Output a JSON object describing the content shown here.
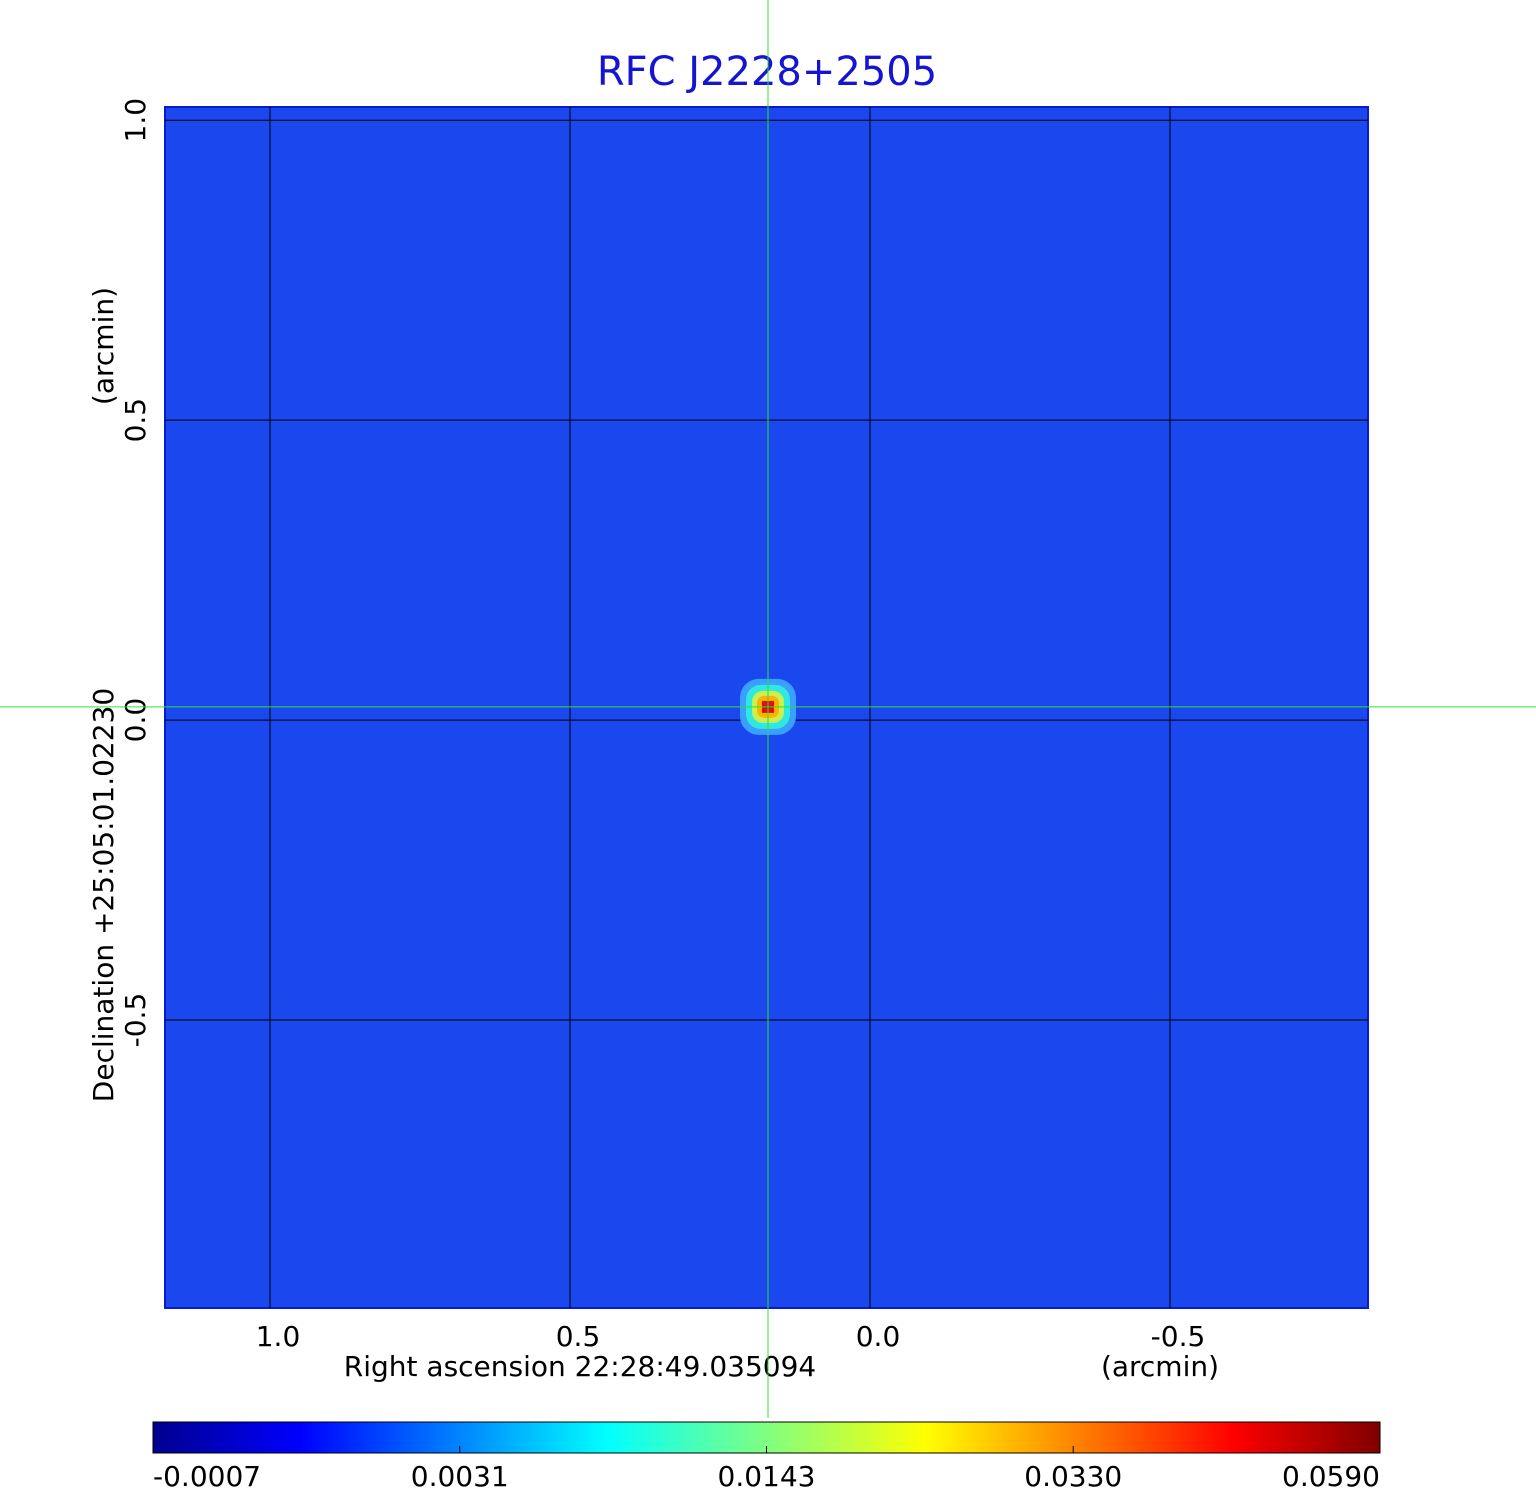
{
  "chart_data": {
    "type": "image",
    "title": "RFC J2228+2505",
    "xlabel": "Right ascension  22:28:49.035094",
    "xunit": "(arcmin)",
    "ylabel": "Declination  +25:05:01.02230",
    "yunit": "(arcmin)",
    "xlim": [
      1.175,
      -0.83
    ],
    "ylim": [
      -0.98,
      1.022
    ],
    "xticks": [
      {
        "value": 1,
        "label": "1.0"
      },
      {
        "value": 0.5,
        "label": "0.5"
      },
      {
        "value": 0,
        "label": "0.0"
      },
      {
        "value": -0.5,
        "label": "-0.5"
      }
    ],
    "yticks": [
      {
        "value": 1,
        "label": "1.0"
      },
      {
        "value": 0.5,
        "label": "0.5"
      },
      {
        "value": 0,
        "label": "0.0"
      },
      {
        "value": -0.5,
        "label": "-0.5"
      }
    ],
    "grid": true,
    "colormap": "jet",
    "colorbar_ticks": [
      -0.0007,
      0.0031,
      0.0143,
      {
        "value": 0.033,
        "label": "0.0330"
      },
      {
        "value": 0.059,
        "label": "0.0590"
      }
    ],
    "source": {
      "x": 0.17,
      "y": 0.022,
      "peak": 0.059
    }
  }
}
